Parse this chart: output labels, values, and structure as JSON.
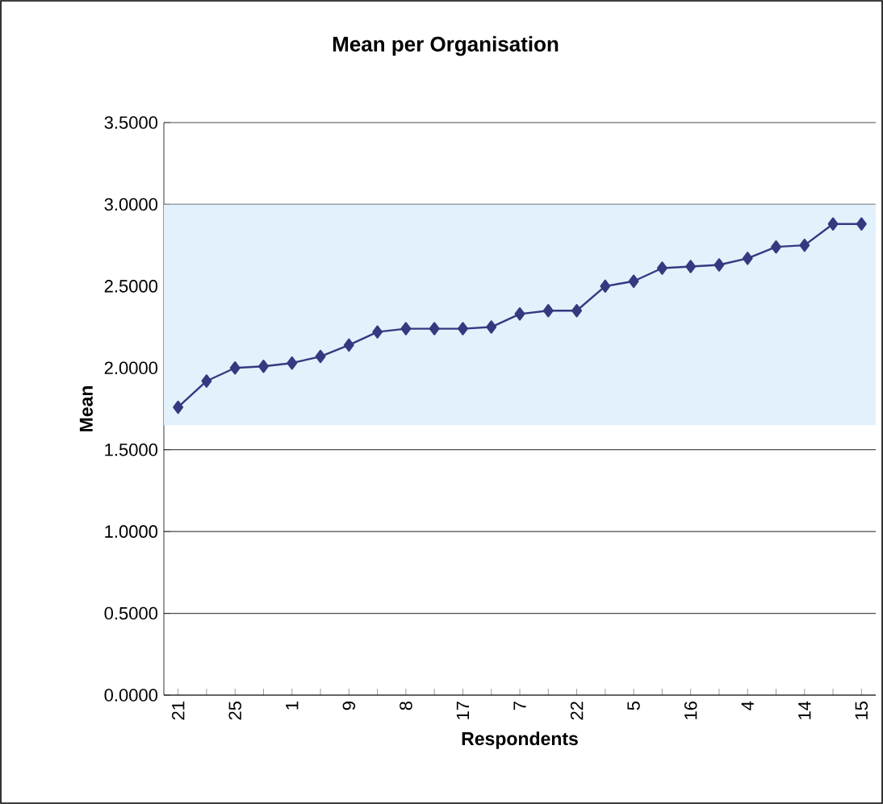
{
  "chart_data": {
    "type": "line",
    "title": "Mean per Organisation",
    "xlabel": "Respondents",
    "ylabel": "Mean",
    "categories": [
      "21",
      null,
      "25",
      null,
      "1",
      null,
      "9",
      null,
      "8",
      null,
      "17",
      null,
      "7",
      null,
      "22",
      null,
      "5",
      null,
      "16",
      null,
      "4",
      null,
      "14",
      null,
      "15"
    ],
    "series": [
      {
        "color": "#333a80",
        "values": [
          1.76,
          1.92,
          2.0,
          2.01,
          2.03,
          2.07,
          2.14,
          2.22,
          2.24,
          2.24,
          2.24,
          2.25,
          2.33,
          2.35,
          2.35,
          2.5,
          2.53,
          2.61,
          2.62,
          2.63,
          2.67,
          2.74,
          2.75,
          2.88,
          2.88
        ]
      }
    ],
    "ylim": [
      0,
      3.5
    ],
    "yticks": [
      {
        "value": 0,
        "label": "0.0000"
      },
      {
        "value": 0.5,
        "label": "0.5000"
      },
      {
        "value": 1,
        "label": "1.0000"
      },
      {
        "value": 1.5,
        "label": "1.5000"
      },
      {
        "value": 2,
        "label": "2.0000"
      },
      {
        "value": 2.5,
        "label": "2.5000"
      },
      {
        "value": 3,
        "label": "3.0000"
      },
      {
        "value": 3.5,
        "label": "3.5000"
      }
    ],
    "bands": [
      {
        "axis": "y",
        "from": 1.65,
        "to": 3.0,
        "color": "#e2f1fb"
      }
    ],
    "grid": "y",
    "marker": "diamond",
    "line_style": "solid"
  }
}
